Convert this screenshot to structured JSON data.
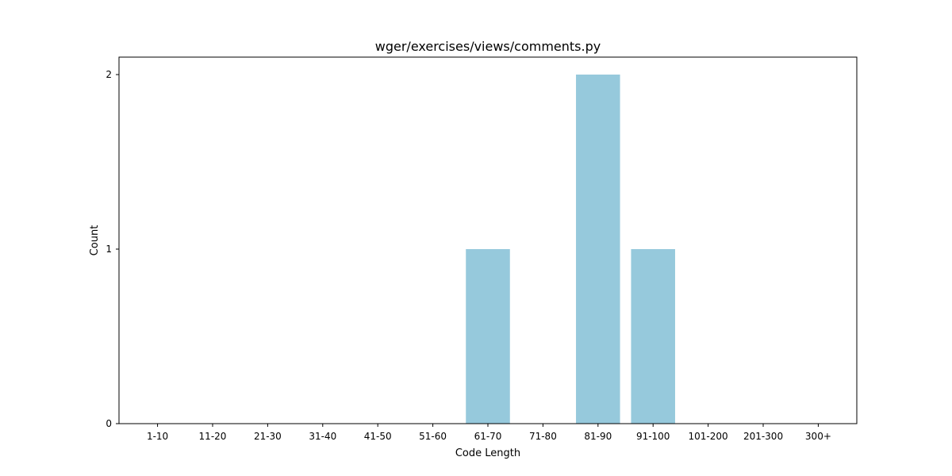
{
  "chart_data": {
    "type": "bar",
    "title": "wger/exercises/views/comments.py",
    "xlabel": "Code Length",
    "ylabel": "Count",
    "categories": [
      "1-10",
      "11-20",
      "21-30",
      "31-40",
      "41-50",
      "51-60",
      "61-70",
      "71-80",
      "81-90",
      "91-100",
      "101-200",
      "201-300",
      "300+"
    ],
    "values": [
      0,
      0,
      0,
      0,
      0,
      0,
      1,
      0,
      2,
      1,
      0,
      0,
      0
    ],
    "ylim": [
      0,
      2.1
    ],
    "yticks": [
      0,
      1,
      2
    ],
    "grid": false,
    "bar_color": "#96c9dc"
  }
}
